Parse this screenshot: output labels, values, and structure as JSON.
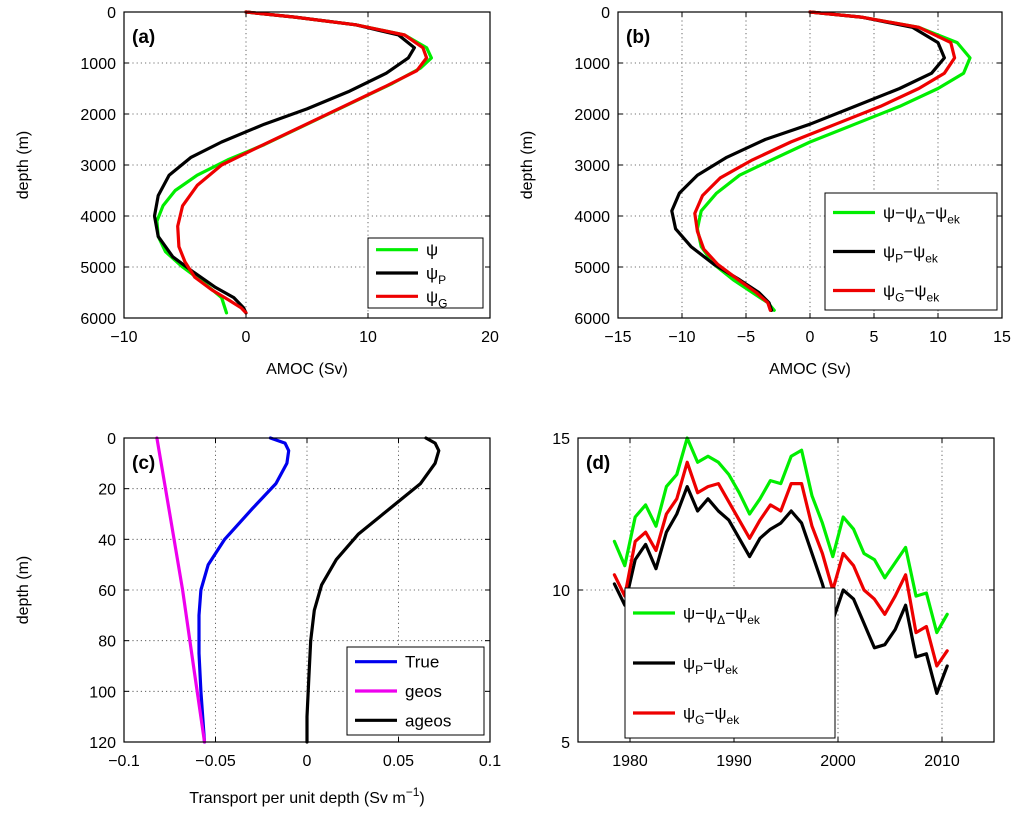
{
  "chart_data": [
    {
      "id": "a",
      "type": "line",
      "panel_label": "(a)",
      "xlabel": "AMOC (Sv)",
      "ylabel": "depth (m)",
      "xlim": [
        -10,
        20
      ],
      "ylim": [
        0,
        6000
      ],
      "y_reversed": true,
      "xticks": [
        "−10",
        "0",
        "10",
        "20"
      ],
      "yticks": [
        "0",
        "1000",
        "2000",
        "3000",
        "4000",
        "5000",
        "6000"
      ],
      "grid": true,
      "legend_position": "lower-right",
      "series": [
        {
          "name": "ψ",
          "sub": "",
          "color": "#00ee00",
          "x": [
            0,
            4,
            9,
            13,
            14.8,
            15.2,
            14.3,
            12,
            8.5,
            5,
            1.5,
            -1.5,
            -4,
            -5.8,
            -6.8,
            -7.3,
            -7.2,
            -6.6,
            -5.2,
            -3.5,
            -2,
            -1.6
          ],
          "y": [
            0,
            100,
            250,
            450,
            700,
            900,
            1100,
            1400,
            1800,
            2200,
            2600,
            2900,
            3200,
            3500,
            3800,
            4100,
            4400,
            4700,
            5000,
            5300,
            5600,
            5900
          ]
        },
        {
          "name": "ψ",
          "sub": "P",
          "color": "#000000",
          "x": [
            0,
            4,
            9,
            12.5,
            13.8,
            13.3,
            11.5,
            8.5,
            5,
            1.5,
            -2,
            -4.5,
            -6.3,
            -7.2,
            -7.5,
            -7.2,
            -6,
            -4.3,
            -2.5,
            -1,
            -0.2,
            0
          ],
          "y": [
            0,
            100,
            250,
            450,
            700,
            900,
            1200,
            1550,
            1900,
            2200,
            2550,
            2850,
            3200,
            3600,
            4000,
            4400,
            4800,
            5100,
            5400,
            5600,
            5800,
            5900
          ]
        },
        {
          "name": "ψ",
          "sub": "G",
          "color": "#ee0000",
          "x": [
            0,
            4,
            9,
            13,
            14.5,
            14.8,
            14,
            11.5,
            8,
            4.5,
            1,
            -2,
            -4,
            -5.2,
            -5.6,
            -5.5,
            -5,
            -4.2,
            -2.8,
            -1.4,
            -0.4,
            0
          ],
          "y": [
            0,
            100,
            250,
            450,
            700,
            900,
            1150,
            1450,
            1850,
            2250,
            2650,
            3000,
            3400,
            3800,
            4200,
            4600,
            4900,
            5200,
            5450,
            5650,
            5800,
            5900
          ]
        }
      ]
    },
    {
      "id": "b",
      "type": "line",
      "panel_label": "(b)",
      "xlabel": "AMOC (Sv)",
      "ylabel": "depth (m)",
      "xlim": [
        -15,
        15
      ],
      "ylim": [
        0,
        6000
      ],
      "y_reversed": true,
      "xticks": [
        "−15",
        "−10",
        "−5",
        "0",
        "5",
        "10",
        "15"
      ],
      "yticks": [
        "0",
        "1000",
        "2000",
        "3000",
        "4000",
        "5000",
        "6000"
      ],
      "grid": true,
      "legend_position": "lower-right",
      "series": [
        {
          "name": "ψ−ψ",
          "sub": "Δ",
          "suffix": "−ψ",
          "sub2": "ek",
          "color": "#00ee00",
          "x": [
            0,
            4,
            8.5,
            11.5,
            12.5,
            12,
            10,
            7,
            3.5,
            0,
            -3,
            -5.5,
            -7.3,
            -8.5,
            -8.8,
            -8.5,
            -7.5,
            -6,
            -4.5,
            -3.3,
            -2.8
          ],
          "y": [
            0,
            100,
            300,
            600,
            900,
            1200,
            1500,
            1850,
            2200,
            2550,
            2900,
            3200,
            3550,
            3900,
            4250,
            4600,
            4950,
            5250,
            5500,
            5700,
            5850
          ]
        },
        {
          "name": "ψ",
          "sub": "P",
          "suffix": "−ψ",
          "sub2": "ek",
          "color": "#000000",
          "x": [
            0,
            4,
            8,
            10,
            10.5,
            9.5,
            7,
            3.5,
            0,
            -3.5,
            -6.5,
            -8.8,
            -10.2,
            -10.8,
            -10.5,
            -9.3,
            -7.5,
            -5.5,
            -4,
            -3.2,
            -3
          ],
          "y": [
            0,
            100,
            300,
            600,
            900,
            1200,
            1500,
            1850,
            2200,
            2500,
            2850,
            3200,
            3550,
            3900,
            4250,
            4600,
            4950,
            5250,
            5500,
            5700,
            5850
          ]
        },
        {
          "name": "ψ",
          "sub": "G",
          "suffix": "−ψ",
          "sub2": "ek",
          "color": "#ee0000",
          "x": [
            0,
            4,
            8.5,
            11,
            11.3,
            10.5,
            8.5,
            5.5,
            2,
            -1.5,
            -4.5,
            -7,
            -8.4,
            -9,
            -8.8,
            -8.3,
            -7.2,
            -5.6,
            -4.2,
            -3.3,
            -3.1
          ],
          "y": [
            0,
            100,
            300,
            600,
            900,
            1200,
            1500,
            1850,
            2200,
            2550,
            2900,
            3250,
            3600,
            3950,
            4300,
            4650,
            4950,
            5250,
            5500,
            5700,
            5850
          ]
        }
      ]
    },
    {
      "id": "c",
      "type": "line",
      "panel_label": "(c)",
      "xlabel": "Transport per unit depth (Sv m",
      "xlabel_sup": "−1",
      "xlabel_end": ")",
      "ylabel": "depth (m)",
      "xlim": [
        -0.1,
        0.1
      ],
      "ylim": [
        0,
        120
      ],
      "y_reversed": true,
      "xticks": [
        "−0.1",
        "−0.05",
        "0",
        "0.05",
        "0.1"
      ],
      "yticks": [
        "0",
        "20",
        "40",
        "60",
        "80",
        "100",
        "120"
      ],
      "grid": true,
      "legend_position": "lower-right",
      "series": [
        {
          "name": "True",
          "color": "#0000ee",
          "x": [
            -0.02,
            -0.012,
            -0.01,
            -0.011,
            -0.017,
            -0.03,
            -0.045,
            -0.054,
            -0.058,
            -0.059,
            -0.059,
            -0.058,
            -0.057,
            -0.056
          ],
          "y": [
            0,
            2,
            5,
            10,
            18,
            28,
            40,
            50,
            60,
            70,
            85,
            100,
            110,
            120
          ]
        },
        {
          "name": "geos",
          "color": "#ee00ee",
          "x": [
            -0.082,
            -0.075,
            -0.068,
            -0.062,
            -0.056
          ],
          "y": [
            0,
            30,
            60,
            90,
            120
          ]
        },
        {
          "name": "ageos",
          "color": "#000000",
          "x": [
            0.065,
            0.07,
            0.072,
            0.07,
            0.062,
            0.045,
            0.028,
            0.016,
            0.008,
            0.004,
            0.002,
            0.001,
            0,
            0
          ],
          "y": [
            0,
            2,
            5,
            10,
            18,
            28,
            38,
            48,
            58,
            68,
            80,
            95,
            110,
            120
          ]
        }
      ]
    },
    {
      "id": "d",
      "type": "line",
      "panel_label": "(d)",
      "xlabel": "",
      "ylabel": "",
      "xlim": [
        1975,
        2015
      ],
      "ylim": [
        5,
        15
      ],
      "xticks": [
        "1980",
        "1990",
        "2000",
        "2010"
      ],
      "yticks": [
        "5",
        "10",
        "15"
      ],
      "grid": true,
      "legend_position": "lower-left",
      "series": [
        {
          "name": "ψ−ψ",
          "sub": "Δ",
          "suffix": "−ψ",
          "sub2": "ek",
          "color": "#00ee00",
          "x": [
            1978.5,
            1979.5,
            1980.5,
            1981.5,
            1982.5,
            1983.5,
            1984.5,
            1985.5,
            1986.5,
            1987.5,
            1988.5,
            1989.5,
            1990.5,
            1991.5,
            1992.5,
            1993.5,
            1994.5,
            1995.5,
            1996.5,
            1997.5,
            1998.5,
            1999.5,
            2000.5,
            2001.5,
            2002.5,
            2003.5,
            2004.5,
            2005.5,
            2006.5,
            2007.5,
            2008.5,
            2009.5,
            2010.5
          ],
          "y": [
            11.6,
            10.8,
            12.4,
            12.8,
            12.1,
            13.4,
            13.8,
            15.0,
            14.2,
            14.4,
            14.2,
            13.8,
            13.2,
            12.5,
            13.0,
            13.6,
            13.5,
            14.4,
            14.6,
            13.1,
            12.2,
            11.1,
            12.4,
            12.0,
            11.2,
            11.0,
            10.4,
            10.9,
            11.4,
            9.8,
            9.9,
            8.6,
            9.2
          ]
        },
        {
          "name": "ψ",
          "sub": "P",
          "suffix": "−ψ",
          "sub2": "ek",
          "color": "#000000",
          "x": [
            1978.5,
            1979.5,
            1980.5,
            1981.5,
            1982.5,
            1983.5,
            1984.5,
            1985.5,
            1986.5,
            1987.5,
            1988.5,
            1989.5,
            1990.5,
            1991.5,
            1992.5,
            1993.5,
            1994.5,
            1995.5,
            1996.5,
            1997.5,
            1998.5,
            1999.5,
            2000.5,
            2001.5,
            2002.5,
            2003.5,
            2004.5,
            2005.5,
            2006.5,
            2007.5,
            2008.5,
            2009.5,
            2010.5
          ],
          "y": [
            10.2,
            9.5,
            11.0,
            11.5,
            10.7,
            11.9,
            12.5,
            13.4,
            12.6,
            13.0,
            12.6,
            12.3,
            11.7,
            11.1,
            11.7,
            12.0,
            12.2,
            12.6,
            12.2,
            11.2,
            10.2,
            9.0,
            10.0,
            9.7,
            8.9,
            8.1,
            8.2,
            8.7,
            9.5,
            7.8,
            7.9,
            6.6,
            7.5
          ]
        },
        {
          "name": "ψ",
          "sub": "G",
          "suffix": "−ψ",
          "sub2": "ek",
          "color": "#ee0000",
          "x": [
            1978.5,
            1979.5,
            1980.5,
            1981.5,
            1982.5,
            1983.5,
            1984.5,
            1985.5,
            1986.5,
            1987.5,
            1988.5,
            1989.5,
            1990.5,
            1991.5,
            1992.5,
            1993.5,
            1994.5,
            1995.5,
            1996.5,
            1997.5,
            1998.5,
            1999.5,
            2000.5,
            2001.5,
            2002.5,
            2003.5,
            2004.5,
            2005.5,
            2006.5,
            2007.5,
            2008.5,
            2009.5,
            2010.5
          ],
          "y": [
            10.5,
            9.8,
            11.6,
            11.9,
            11.3,
            12.5,
            13.0,
            14.2,
            13.2,
            13.4,
            13.5,
            12.9,
            12.3,
            11.7,
            12.3,
            12.8,
            12.6,
            13.5,
            13.5,
            12.1,
            11.2,
            10.0,
            11.2,
            10.8,
            10.0,
            9.7,
            9.2,
            9.8,
            10.5,
            8.6,
            8.8,
            7.5,
            8.0
          ]
        }
      ]
    }
  ]
}
